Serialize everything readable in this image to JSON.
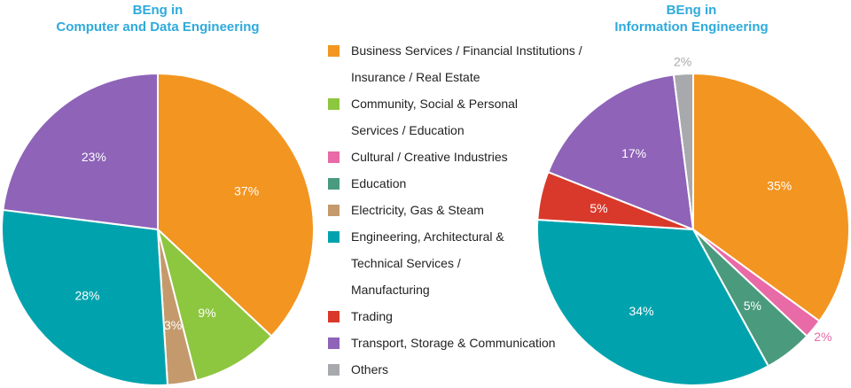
{
  "chart_data": [
    {
      "type": "pie",
      "title": [
        "BEng in",
        "Computer and Data Engineering"
      ],
      "slices": [
        {
          "category": "Business Services / Financial Institutions / Insurance / Real Estate",
          "label": "37%",
          "value": 37,
          "color": "#f39521"
        },
        {
          "category": "Community, Social & Personal Services / Education",
          "label": "9%",
          "value": 9,
          "color": "#8dc63f"
        },
        {
          "category": "Electricity, Gas & Steam",
          "label": "3%",
          "value": 3,
          "color": "#c49a6c"
        },
        {
          "category": "Engineering, Architectural & Technical Services / Manufacturing",
          "label": "28%",
          "value": 28,
          "color": "#00a3ad"
        },
        {
          "category": "Transport, Storage & Communication",
          "label": "23%",
          "value": 23,
          "color": "#8e63b8"
        }
      ]
    },
    {
      "type": "pie",
      "title": [
        "BEng in",
        "Information Engineering"
      ],
      "slices": [
        {
          "category": "Business Services / Financial Institutions / Insurance / Real Estate",
          "label": "35%",
          "value": 35,
          "color": "#f39521"
        },
        {
          "category": "Cultural / Creative Industries",
          "label": "2%",
          "value": 2,
          "color": "#e86aa6"
        },
        {
          "category": "Education",
          "label": "5%",
          "value": 5,
          "color": "#4a9a7e"
        },
        {
          "category": "Engineering, Architectural & Technical Services / Manufacturing",
          "label": "34%",
          "value": 34,
          "color": "#00a3ad"
        },
        {
          "category": "Trading",
          "label": "5%",
          "value": 5,
          "color": "#d9392b"
        },
        {
          "category": "Transport, Storage & Communication",
          "label": "17%",
          "value": 17,
          "color": "#8e63b8"
        },
        {
          "category": "Others",
          "label": "2%",
          "value": 2,
          "color": "#a7a9ac"
        }
      ]
    }
  ],
  "legend": [
    {
      "lines": [
        "Business Services / Financial Institutions /",
        "Insurance / Real Estate"
      ],
      "color": "#f39521"
    },
    {
      "lines": [
        "Community, Social & Personal",
        "Services / Education"
      ],
      "color": "#8dc63f"
    },
    {
      "lines": [
        "Cultural / Creative Industries"
      ],
      "color": "#e86aa6"
    },
    {
      "lines": [
        "Education"
      ],
      "color": "#4a9a7e"
    },
    {
      "lines": [
        "Electricity, Gas & Steam"
      ],
      "color": "#c49a6c"
    },
    {
      "lines": [
        "Engineering, Architectural &",
        "Technical Services /",
        "Manufacturing"
      ],
      "color": "#00a3ad"
    },
    {
      "lines": [
        "Trading"
      ],
      "color": "#d9392b"
    },
    {
      "lines": [
        "Transport, Storage & Communication"
      ],
      "color": "#8e63b8"
    },
    {
      "lines": [
        "Others"
      ],
      "color": "#a7a9ac"
    }
  ]
}
